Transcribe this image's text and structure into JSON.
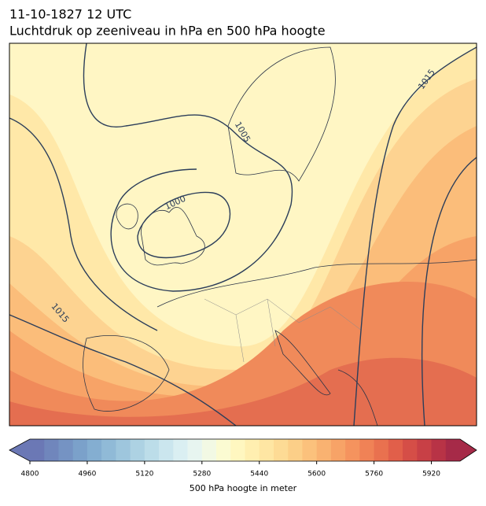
{
  "header": {
    "date": "11-10-1827 12 UTC",
    "title": "Luchtdruk op zeeniveau in hPa en 500 hPa hoogte"
  },
  "isobar_labels": [
    1000,
    1005,
    1015,
    1015
  ],
  "colorbar": {
    "label": "500 hPa hoogte in meter",
    "range": [
      4800,
      6000
    ],
    "ticks": [
      4800,
      4960,
      5120,
      5280,
      5440,
      5600,
      5760,
      5920
    ],
    "colors": [
      "#6b78b5",
      "#7086bc",
      "#7593c3",
      "#7ba1ca",
      "#84aed1",
      "#90bad7",
      "#9ec6dd",
      "#add2e3",
      "#bcdde9",
      "#cbe6ee",
      "#daeff2",
      "#e7f5f0",
      "#f2f9e4",
      "#fbfbd2",
      "#fff7c0",
      "#ffefb0",
      "#fee6a3",
      "#fddb95",
      "#fccf88",
      "#fbc17c",
      "#f9b271",
      "#f7a367",
      "#f5935e",
      "#f08256",
      "#e9714f",
      "#e15f4a",
      "#d54e47",
      "#c84046",
      "#b83346",
      "#a62a48"
    ]
  }
}
